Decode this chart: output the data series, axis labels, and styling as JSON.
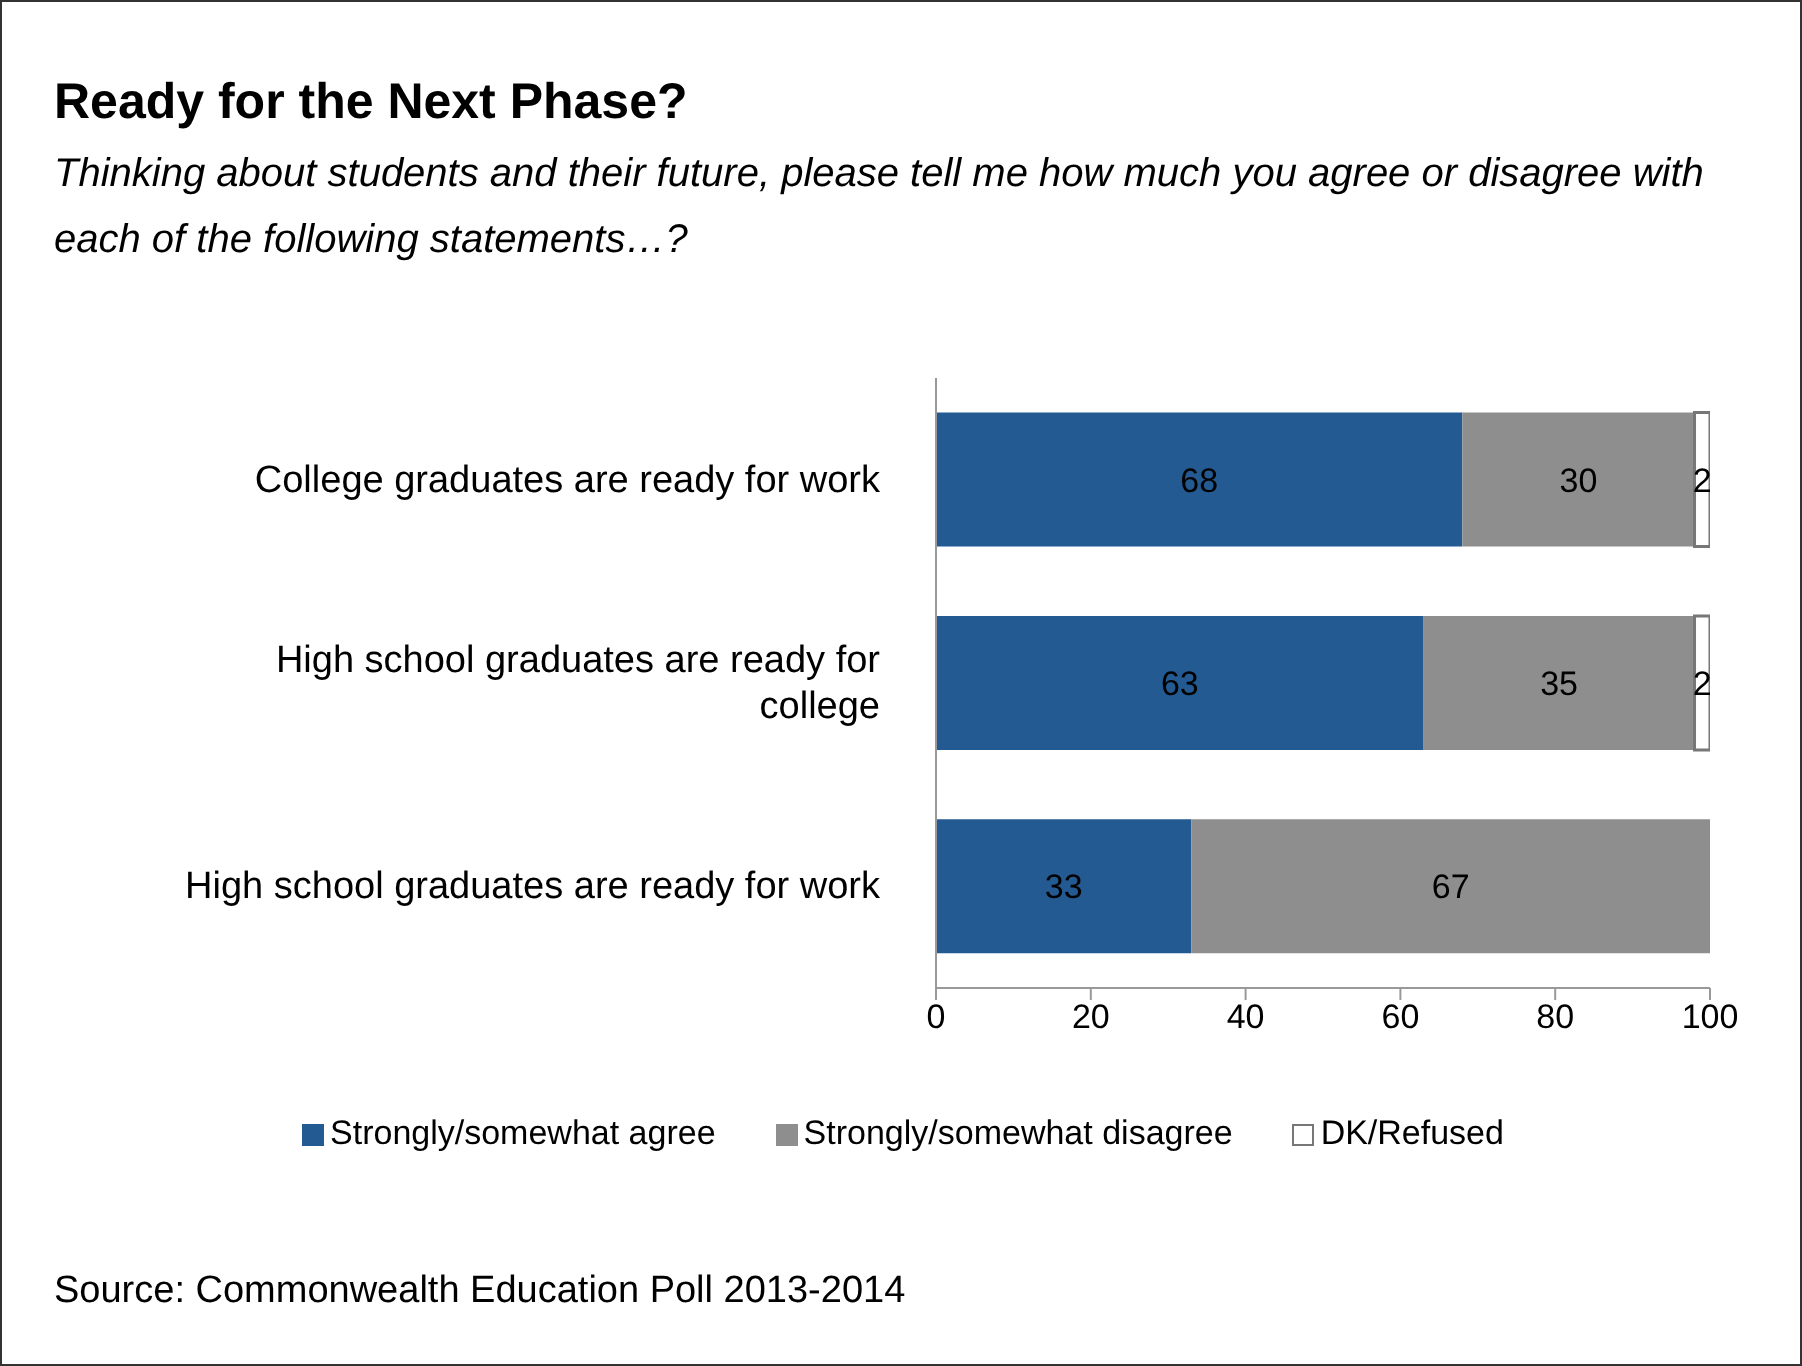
{
  "chart_data": {
    "type": "bar",
    "orientation": "horizontal",
    "stacked": true,
    "title": "Ready for the Next Phase?",
    "subtitle": "Thinking about students and their future, please tell me how much you agree or disagree with each of the following statements…?",
    "categories": [
      "College graduates are ready for work",
      "High school graduates are ready for college",
      "High school graduates are ready for work"
    ],
    "series": [
      {
        "name": "Strongly/somewhat agree",
        "color": "#245a92",
        "values": [
          68,
          63,
          33
        ]
      },
      {
        "name": "Strongly/somewhat disagree",
        "color": "#8e8e8e",
        "values": [
          30,
          35,
          67
        ]
      },
      {
        "name": "DK/Refused",
        "color": "#ffffff",
        "values": [
          2,
          2,
          null
        ]
      }
    ],
    "xlim": [
      0,
      100
    ],
    "xticks": [
      0,
      20,
      40,
      60,
      80,
      100
    ],
    "grid": false,
    "legend": "bottom",
    "data_labels": true,
    "annotations": [
      "Source: Commonwealth Education Poll 2013-2014"
    ]
  }
}
